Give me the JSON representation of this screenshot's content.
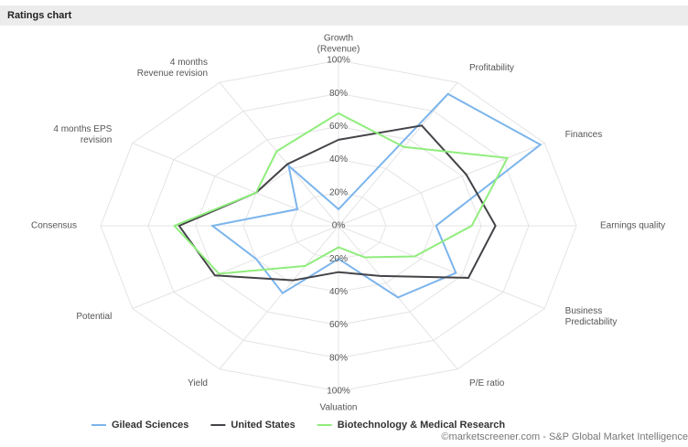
{
  "chart_data": {
    "type": "radar",
    "title": "Ratings chart",
    "categories": [
      [
        "Growth",
        "(Revenue)"
      ],
      [
        "Profitability"
      ],
      [
        "Finances"
      ],
      [
        "Earnings quality"
      ],
      [
        "Business",
        "Predictability"
      ],
      [
        "P/E ratio"
      ],
      [
        "Valuation"
      ],
      [
        "Yield"
      ],
      [
        "Potential"
      ],
      [
        "Consensus"
      ],
      [
        "4 months EPS",
        "revision"
      ],
      [
        "4 months",
        "Revenue revision"
      ]
    ],
    "series": [
      {
        "name": "Gilead Sciences",
        "color": "#7cb5ec",
        "values": [
          10,
          92,
          98,
          41,
          57,
          50,
          20,
          47,
          40,
          53,
          20,
          42
        ]
      },
      {
        "name": "United States",
        "color": "#434348",
        "values": [
          52,
          70,
          62,
          66,
          63,
          35,
          28,
          38,
          60,
          67,
          40,
          43
        ]
      },
      {
        "name": "Biotechnology & Medical Research",
        "color": "#90ed7d",
        "values": [
          68,
          55,
          82,
          56,
          37,
          22,
          13,
          28,
          58,
          69,
          40,
          52
        ]
      }
    ],
    "rlim": [
      0,
      100
    ],
    "rticks": [
      {
        "value": 0,
        "label": "0%"
      },
      {
        "value": 20,
        "label": "20%"
      },
      {
        "value": 40,
        "label": "40%"
      },
      {
        "value": 60,
        "label": "60%"
      },
      {
        "value": 80,
        "label": "80%"
      },
      {
        "value": 100,
        "label": "100%"
      }
    ],
    "grid": true,
    "legend": "bottom",
    "source": "©marketscreener.com - S&P Global Market Intelligence"
  }
}
